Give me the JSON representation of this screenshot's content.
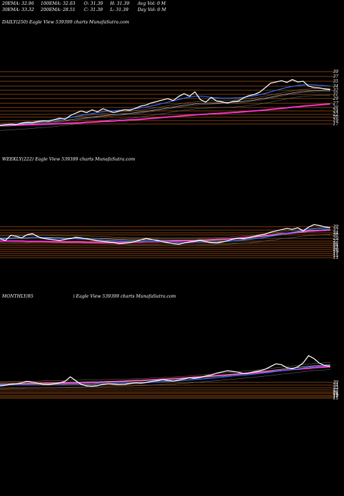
{
  "header": {
    "row1": [
      "20EMA: 32.96",
      "100EMA: 32.03",
      "O: 31.39",
      "H: 31.39",
      "Avg Vol: 0  M"
    ],
    "row2": [
      "30EMA: 33.32",
      "200EMA: 28.51",
      "C: 31.39",
      "L: 31.39",
      "Day Vol: 0  M"
    ]
  },
  "panels": [
    {
      "title": "DAILY(250) Eagle   View  539399 charts MunafaSutra.com"
    },
    {
      "title": "WEEKLY(222) Eagle   View  539399 charts MunafaSutra.com"
    },
    {
      "title": "MONTHLY/85",
      "title2": ") Eagle   View  539399 charts MunafaSutra.com"
    }
  ],
  "colors": {
    "price": "#ffffff",
    "ema_short": "#ffffff",
    "ema_blue": "#2f6df0",
    "ema_long": "#ff33cc",
    "levels": "#c8651e"
  },
  "chart_data": [
    {
      "type": "line",
      "name": "daily",
      "y_ticks": [
        "39",
        "37",
        "35",
        "34",
        "32",
        "31",
        "29",
        "27",
        "26",
        "24",
        "22",
        "20",
        "19",
        "17"
      ],
      "series": [
        {
          "role": "price",
          "values": [
            17,
            17.3,
            17.6,
            17.4,
            18,
            18.4,
            18.3,
            18.8,
            19.1,
            18.9,
            19.6,
            20.3,
            19.8,
            21.5,
            22.6,
            23.6,
            22.8,
            24.1,
            23.2,
            24.6,
            23.7,
            22.9,
            23.5,
            24.1,
            23.9,
            24.8,
            25.8,
            26.3,
            27.3,
            27.9,
            28.6,
            29.2,
            28.3,
            30.2,
            31.5,
            30.3,
            32.3,
            28.8,
            27.6,
            29.8,
            28.1,
            27.8,
            27.2,
            27.9,
            28.1,
            29.6,
            30.6,
            31.1,
            32.2,
            34.2,
            36.3,
            36.8,
            37.4,
            36.6,
            37.9,
            36.8,
            37.1,
            34.9,
            34.3,
            34.1,
            33.6,
            33.4
          ]
        },
        {
          "role": "ema_blue",
          "values": [
            17,
            17.2,
            17.4,
            17.6,
            17.8,
            18,
            18.2,
            18.5,
            18.8,
            19.1,
            19.4,
            19.8,
            20.2,
            20.6,
            21.1,
            21.6,
            22,
            22.4,
            22.8,
            23.2,
            23.5,
            23.7,
            23.9,
            24.1,
            24.3,
            24.6,
            25,
            25.4,
            25.9,
            26.4,
            27,
            27.6,
            28.2,
            28.8,
            29.4,
            29.9,
            30.3,
            30.3,
            30.1,
            29.8,
            29.6,
            29.4,
            29.4,
            29.5,
            29.6,
            29.8,
            30.1,
            30.5,
            31,
            31.6,
            32.3,
            33,
            33.7,
            34.3,
            34.8,
            35.2,
            35.5,
            35.6,
            35.5,
            35.3,
            35.1,
            34.9
          ]
        },
        {
          "role": "ema_short",
          "values": [
            17,
            17.1,
            17.2,
            17.4,
            17.5,
            17.7,
            17.9,
            18.1,
            18.3,
            18.5,
            18.7,
            19,
            19.3,
            19.6,
            19.9,
            20.2,
            20.5,
            20.8,
            21.1,
            21.4,
            21.7,
            21.9,
            22.1,
            22.3,
            22.5,
            22.8,
            23.1,
            23.4,
            23.8,
            24.2,
            24.6,
            25,
            25.4,
            25.8,
            26.2,
            26.5,
            26.8,
            27,
            27.1,
            27.2,
            27.3,
            27.4,
            27.5,
            27.6,
            27.8,
            28,
            28.3,
            28.6,
            29,
            29.4,
            29.9,
            30.4,
            30.9,
            31.4,
            31.8,
            32.2,
            32.5,
            32.7,
            32.8,
            32.9,
            33,
            33
          ]
        },
        {
          "role": "ema_long",
          "values": [
            17,
            17,
            17.1,
            17.1,
            17.2,
            17.3,
            17.3,
            17.4,
            17.5,
            17.6,
            17.7,
            17.8,
            17.9,
            18,
            18.1,
            18.2,
            18.4,
            18.5,
            18.6,
            18.8,
            18.9,
            19,
            19.2,
            19.3,
            19.5,
            19.6,
            19.8,
            20,
            20.2,
            20.4,
            20.6,
            20.8,
            21,
            21.2,
            21.4,
            21.6,
            21.8,
            22,
            22.1,
            22.3,
            22.4,
            22.6,
            22.7,
            22.9,
            23,
            23.2,
            23.4,
            23.6,
            23.8,
            24,
            24.3,
            24.5,
            24.8,
            25,
            25.3,
            25.5,
            25.8,
            26,
            26.2,
            26.4,
            26.6,
            26.8
          ]
        }
      ]
    },
    {
      "type": "line",
      "name": "weekly",
      "y_ticks": [
        "39",
        "37",
        "34",
        "30",
        "29",
        "27",
        "26",
        "24",
        "22",
        "20",
        "19",
        "17",
        "15",
        "13"
      ],
      "series": [
        {
          "role": "price",
          "values": [
            0.55,
            0.5,
            0.66,
            0.63,
            0.58,
            0.68,
            0.71,
            0.62,
            0.56,
            0.54,
            0.52,
            0.5,
            0.53,
            0.56,
            0.6,
            0.58,
            0.55,
            0.52,
            0.49,
            0.47,
            0.45,
            0.43,
            0.4,
            0.41,
            0.43,
            0.47,
            0.52,
            0.56,
            0.53,
            0.5,
            0.46,
            0.43,
            0.4,
            0.38,
            0.42,
            0.45,
            0.47,
            0.5,
            0.46,
            0.43,
            0.42,
            0.45,
            0.49,
            0.54,
            0.57,
            0.55,
            0.59,
            0.63,
            0.67,
            0.7,
            0.76,
            0.8,
            0.84,
            0.88,
            0.85,
            0.9,
            0.8,
            0.92,
            1,
            0.97,
            0.93,
            0.9
          ]
        },
        {
          "role": "ema_blue",
          "values": [
            0.56,
            0.56,
            0.57,
            0.58,
            0.58,
            0.59,
            0.6,
            0.6,
            0.59,
            0.58,
            0.57,
            0.56,
            0.55,
            0.55,
            0.55,
            0.54,
            0.54,
            0.53,
            0.52,
            0.51,
            0.5,
            0.49,
            0.48,
            0.47,
            0.46,
            0.46,
            0.46,
            0.47,
            0.47,
            0.47,
            0.46,
            0.46,
            0.45,
            0.44,
            0.44,
            0.44,
            0.45,
            0.45,
            0.45,
            0.45,
            0.45,
            0.46,
            0.47,
            0.48,
            0.5,
            0.51,
            0.53,
            0.55,
            0.57,
            0.6,
            0.63,
            0.66,
            0.7,
            0.73,
            0.76,
            0.79,
            0.81,
            0.84,
            0.87,
            0.88,
            0.89,
            0.9
          ]
        },
        {
          "role": "ema_short",
          "values": [
            0.58,
            0.58,
            0.58,
            0.59,
            0.59,
            0.59,
            0.6,
            0.6,
            0.6,
            0.6,
            0.59,
            0.59,
            0.58,
            0.58,
            0.58,
            0.57,
            0.57,
            0.56,
            0.56,
            0.55,
            0.55,
            0.54,
            0.53,
            0.53,
            0.52,
            0.52,
            0.52,
            0.52,
            0.52,
            0.52,
            0.51,
            0.51,
            0.51,
            0.51,
            0.51,
            0.51,
            0.51,
            0.52,
            0.52,
            0.52,
            0.53,
            0.53,
            0.54,
            0.55,
            0.56,
            0.57,
            0.58,
            0.6,
            0.62,
            0.64,
            0.66,
            0.68,
            0.71,
            0.73,
            0.75,
            0.77,
            0.79,
            0.81,
            0.82,
            0.83,
            0.84,
            0.85
          ]
        },
        {
          "role": "ema_long",
          "values": [
            0.48,
            0.48,
            0.48,
            0.48,
            0.48,
            0.47,
            0.47,
            0.47,
            0.47,
            0.46,
            0.46,
            0.46,
            0.45,
            0.45,
            0.45,
            0.45,
            0.44,
            0.44,
            0.44,
            0.44,
            0.44,
            0.44,
            0.44,
            0.44,
            0.45,
            0.45,
            0.45,
            0.46,
            0.46,
            0.46,
            0.47,
            0.47,
            0.48,
            0.48,
            0.49,
            0.49,
            0.5,
            0.51,
            0.51,
            0.52,
            0.53,
            0.54,
            0.55,
            0.56,
            0.57,
            0.59,
            0.6,
            0.62,
            0.63,
            0.65,
            0.67,
            0.69,
            0.71,
            0.72,
            0.74,
            0.76,
            0.77,
            0.79,
            0.8,
            0.81,
            0.82,
            0.83
          ]
        }
      ]
    },
    {
      "type": "line",
      "name": "monthly",
      "y_ticks": [
        "39",
        "34",
        "32",
        "27",
        "26",
        "24",
        "19",
        "17",
        "15"
      ],
      "series": [
        {
          "role": "price",
          "values": [
            0.45,
            0.47,
            0.5,
            0.52,
            0.55,
            0.6,
            0.57,
            0.54,
            0.5,
            0.49,
            0.52,
            0.55,
            0.6,
            0.75,
            0.62,
            0.5,
            0.45,
            0.44,
            0.46,
            0.5,
            0.52,
            0.51,
            0.49,
            0.5,
            0.53,
            0.55,
            0.54,
            0.56,
            0.6,
            0.62,
            0.66,
            0.63,
            0.61,
            0.64,
            0.68,
            0.72,
            0.7,
            0.73,
            0.78,
            0.81,
            0.87,
            0.91,
            0.95,
            0.93,
            0.9,
            0.86,
            0.88,
            0.92,
            0.95,
            1,
            1.09,
            1.18,
            1.15,
            1.05,
            1.02,
            1.08,
            1.21,
            1.45,
            1.35,
            1.2,
            1.12,
            1.1
          ]
        },
        {
          "role": "ema_blue",
          "values": [
            0.49,
            0.49,
            0.49,
            0.49,
            0.49,
            0.49,
            0.5,
            0.5,
            0.5,
            0.5,
            0.5,
            0.5,
            0.5,
            0.51,
            0.51,
            0.51,
            0.51,
            0.51,
            0.52,
            0.52,
            0.52,
            0.53,
            0.53,
            0.54,
            0.54,
            0.55,
            0.55,
            0.56,
            0.57,
            0.58,
            0.59,
            0.6,
            0.61,
            0.62,
            0.63,
            0.64,
            0.66,
            0.67,
            0.69,
            0.7,
            0.72,
            0.74,
            0.76,
            0.78,
            0.79,
            0.8,
            0.82,
            0.84,
            0.86,
            0.88,
            0.9,
            0.93,
            0.95,
            0.97,
            0.99,
            1.01,
            1.04,
            1.07,
            1.09,
            1.1,
            1.11,
            1.12
          ]
        },
        {
          "role": "ema_short",
          "values": [
            0.52,
            0.52,
            0.53,
            0.53,
            0.53,
            0.54,
            0.54,
            0.54,
            0.55,
            0.55,
            0.55,
            0.56,
            0.56,
            0.57,
            0.57,
            0.57,
            0.58,
            0.58,
            0.58,
            0.59,
            0.59,
            0.6,
            0.6,
            0.61,
            0.61,
            0.62,
            0.62,
            0.63,
            0.64,
            0.65,
            0.66,
            0.67,
            0.68,
            0.69,
            0.7,
            0.71,
            0.73,
            0.74,
            0.76,
            0.77,
            0.79,
            0.8,
            0.82,
            0.83,
            0.85,
            0.87,
            0.88,
            0.9,
            0.92,
            0.94,
            0.96,
            0.98,
            1,
            1.02,
            1.04,
            1.06,
            1.08,
            1.1,
            1.12,
            1.13,
            1.14,
            1.15
          ]
        },
        {
          "role": "ema_long",
          "values": [
            0.5,
            0.5,
            0.5,
            0.51,
            0.51,
            0.51,
            0.52,
            0.52,
            0.52,
            0.53,
            0.53,
            0.54,
            0.54,
            0.55,
            0.55,
            0.56,
            0.56,
            0.57,
            0.57,
            0.58,
            0.59,
            0.59,
            0.6,
            0.61,
            0.62,
            0.63,
            0.63,
            0.64,
            0.65,
            0.66,
            0.67,
            0.68,
            0.69,
            0.7,
            0.71,
            0.72,
            0.74,
            0.75,
            0.76,
            0.77,
            0.79,
            0.8,
            0.81,
            0.83,
            0.84,
            0.85,
            0.87,
            0.88,
            0.9,
            0.91,
            0.93,
            0.94,
            0.96,
            0.97,
            0.99,
            1,
            1.02,
            1.03,
            1.05,
            1.06,
            1.07,
            1.08
          ]
        }
      ]
    }
  ]
}
